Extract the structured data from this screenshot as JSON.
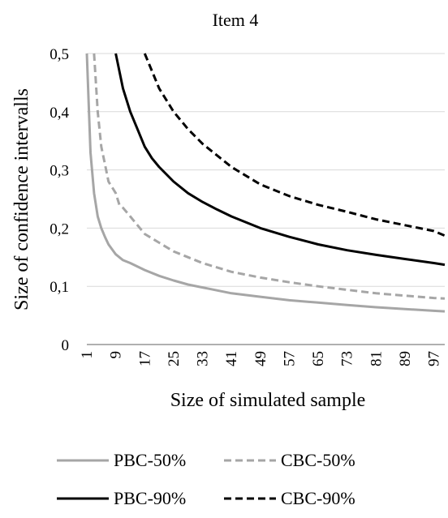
{
  "chart_data": {
    "type": "line",
    "title": "Item 4",
    "xlabel": "Size of simulated sample",
    "ylabel": "Size of confidence intervalls",
    "ylim": [
      0,
      0.5
    ],
    "xlim": [
      1,
      100
    ],
    "y_ticks": [
      "0",
      "0,1",
      "0,2",
      "0,3",
      "0,4",
      "0,5"
    ],
    "x_ticks": [
      "1",
      "9",
      "17",
      "25",
      "33",
      "41",
      "49",
      "57",
      "65",
      "73",
      "81",
      "89",
      "97"
    ],
    "legend_position": "bottom",
    "grid": "horizontal",
    "series": [
      {
        "name": "PBC-50%",
        "color": "#a6a6a6",
        "dash": "solid",
        "points": [
          [
            1,
            0.5
          ],
          [
            2,
            0.33
          ],
          [
            3,
            0.26
          ],
          [
            4,
            0.22
          ],
          [
            5,
            0.2
          ],
          [
            6,
            0.185
          ],
          [
            7,
            0.172
          ],
          [
            9,
            0.155
          ],
          [
            11,
            0.145
          ],
          [
            13,
            0.14
          ],
          [
            17,
            0.128
          ],
          [
            21,
            0.118
          ],
          [
            25,
            0.11
          ],
          [
            29,
            0.103
          ],
          [
            33,
            0.098
          ],
          [
            41,
            0.088
          ],
          [
            49,
            0.082
          ],
          [
            57,
            0.076
          ],
          [
            65,
            0.072
          ],
          [
            73,
            0.068
          ],
          [
            81,
            0.064
          ],
          [
            89,
            0.061
          ],
          [
            97,
            0.058
          ],
          [
            100,
            0.057
          ]
        ]
      },
      {
        "name": "CBC-50%",
        "color": "#a6a6a6",
        "dash": "dashed",
        "points": [
          [
            3,
            0.5
          ],
          [
            4,
            0.4
          ],
          [
            5,
            0.34
          ],
          [
            6,
            0.31
          ],
          [
            7,
            0.28
          ],
          [
            8,
            0.27
          ],
          [
            9,
            0.26
          ],
          [
            10,
            0.24
          ],
          [
            11,
            0.235
          ],
          [
            13,
            0.22
          ],
          [
            15,
            0.205
          ],
          [
            17,
            0.19
          ],
          [
            21,
            0.175
          ],
          [
            25,
            0.16
          ],
          [
            29,
            0.15
          ],
          [
            33,
            0.14
          ],
          [
            41,
            0.125
          ],
          [
            49,
            0.115
          ],
          [
            57,
            0.107
          ],
          [
            65,
            0.1
          ],
          [
            73,
            0.094
          ],
          [
            81,
            0.088
          ],
          [
            89,
            0.084
          ],
          [
            97,
            0.08
          ],
          [
            100,
            0.079
          ]
        ]
      },
      {
        "name": "PBC-90%",
        "color": "#000000",
        "dash": "solid",
        "points": [
          [
            9,
            0.5
          ],
          [
            11,
            0.44
          ],
          [
            13,
            0.4
          ],
          [
            15,
            0.37
          ],
          [
            17,
            0.34
          ],
          [
            19,
            0.32
          ],
          [
            21,
            0.305
          ],
          [
            25,
            0.28
          ],
          [
            29,
            0.26
          ],
          [
            33,
            0.245
          ],
          [
            37,
            0.232
          ],
          [
            41,
            0.22
          ],
          [
            49,
            0.2
          ],
          [
            57,
            0.185
          ],
          [
            65,
            0.172
          ],
          [
            73,
            0.162
          ],
          [
            81,
            0.154
          ],
          [
            89,
            0.147
          ],
          [
            97,
            0.14
          ],
          [
            100,
            0.137
          ]
        ]
      },
      {
        "name": "CBC-90%",
        "color": "#000000",
        "dash": "dashed",
        "points": [
          [
            17,
            0.5
          ],
          [
            19,
            0.47
          ],
          [
            21,
            0.44
          ],
          [
            23,
            0.42
          ],
          [
            25,
            0.4
          ],
          [
            29,
            0.37
          ],
          [
            33,
            0.345
          ],
          [
            37,
            0.325
          ],
          [
            41,
            0.305
          ],
          [
            49,
            0.275
          ],
          [
            57,
            0.255
          ],
          [
            65,
            0.24
          ],
          [
            73,
            0.228
          ],
          [
            81,
            0.215
          ],
          [
            89,
            0.205
          ],
          [
            97,
            0.195
          ],
          [
            100,
            0.187
          ]
        ]
      }
    ]
  }
}
